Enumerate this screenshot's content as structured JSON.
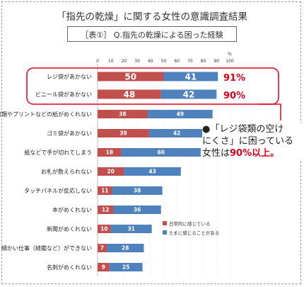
{
  "title": "「指先の乾燥」に関する女性の意識調査結果",
  "subtitle": "［表①］ Q.指先の乾燥による困った経験",
  "callout": {
    "line1": "●「レジ袋類の空け",
    "line2": "にくさ」に困っている",
    "line3_a": "女性は",
    "line3_b": "90%以上。"
  },
  "highlight_labels": [
    "91%",
    "90%"
  ],
  "colors": {
    "series1": "#c0504d",
    "series2": "#4f81bd",
    "highlight": "#e3001b"
  },
  "chart_data": {
    "type": "bar",
    "orientation": "horizontal",
    "stacked": true,
    "unit": "%",
    "xlim": [
      0,
      100
    ],
    "xticks": [
      0,
      10,
      20,
      30,
      40,
      50,
      60,
      70,
      80,
      90,
      100
    ],
    "categories": [
      "レジ袋があかない",
      "ビニール袋があかない",
      "書類やプリントなどの紙がめくれない",
      "ゴミ袋があかない",
      "紙などで手が切れてしまう",
      "お札が数えられない",
      "タッチパネルが反応しない",
      "本がめくれない",
      "新聞がめくれない",
      "細かい仕事（縫鑑など）ができない",
      "名刺がめくれない"
    ],
    "series": [
      {
        "name": "日常的に感じている",
        "values": [
          50,
          48,
          38,
          39,
          18,
          20,
          11,
          12,
          10,
          7,
          9
        ]
      },
      {
        "name": "たまに感じることがある",
        "values": [
          41,
          42,
          49,
          42,
          60,
          43,
          38,
          36,
          31,
          28,
          25
        ]
      }
    ]
  }
}
